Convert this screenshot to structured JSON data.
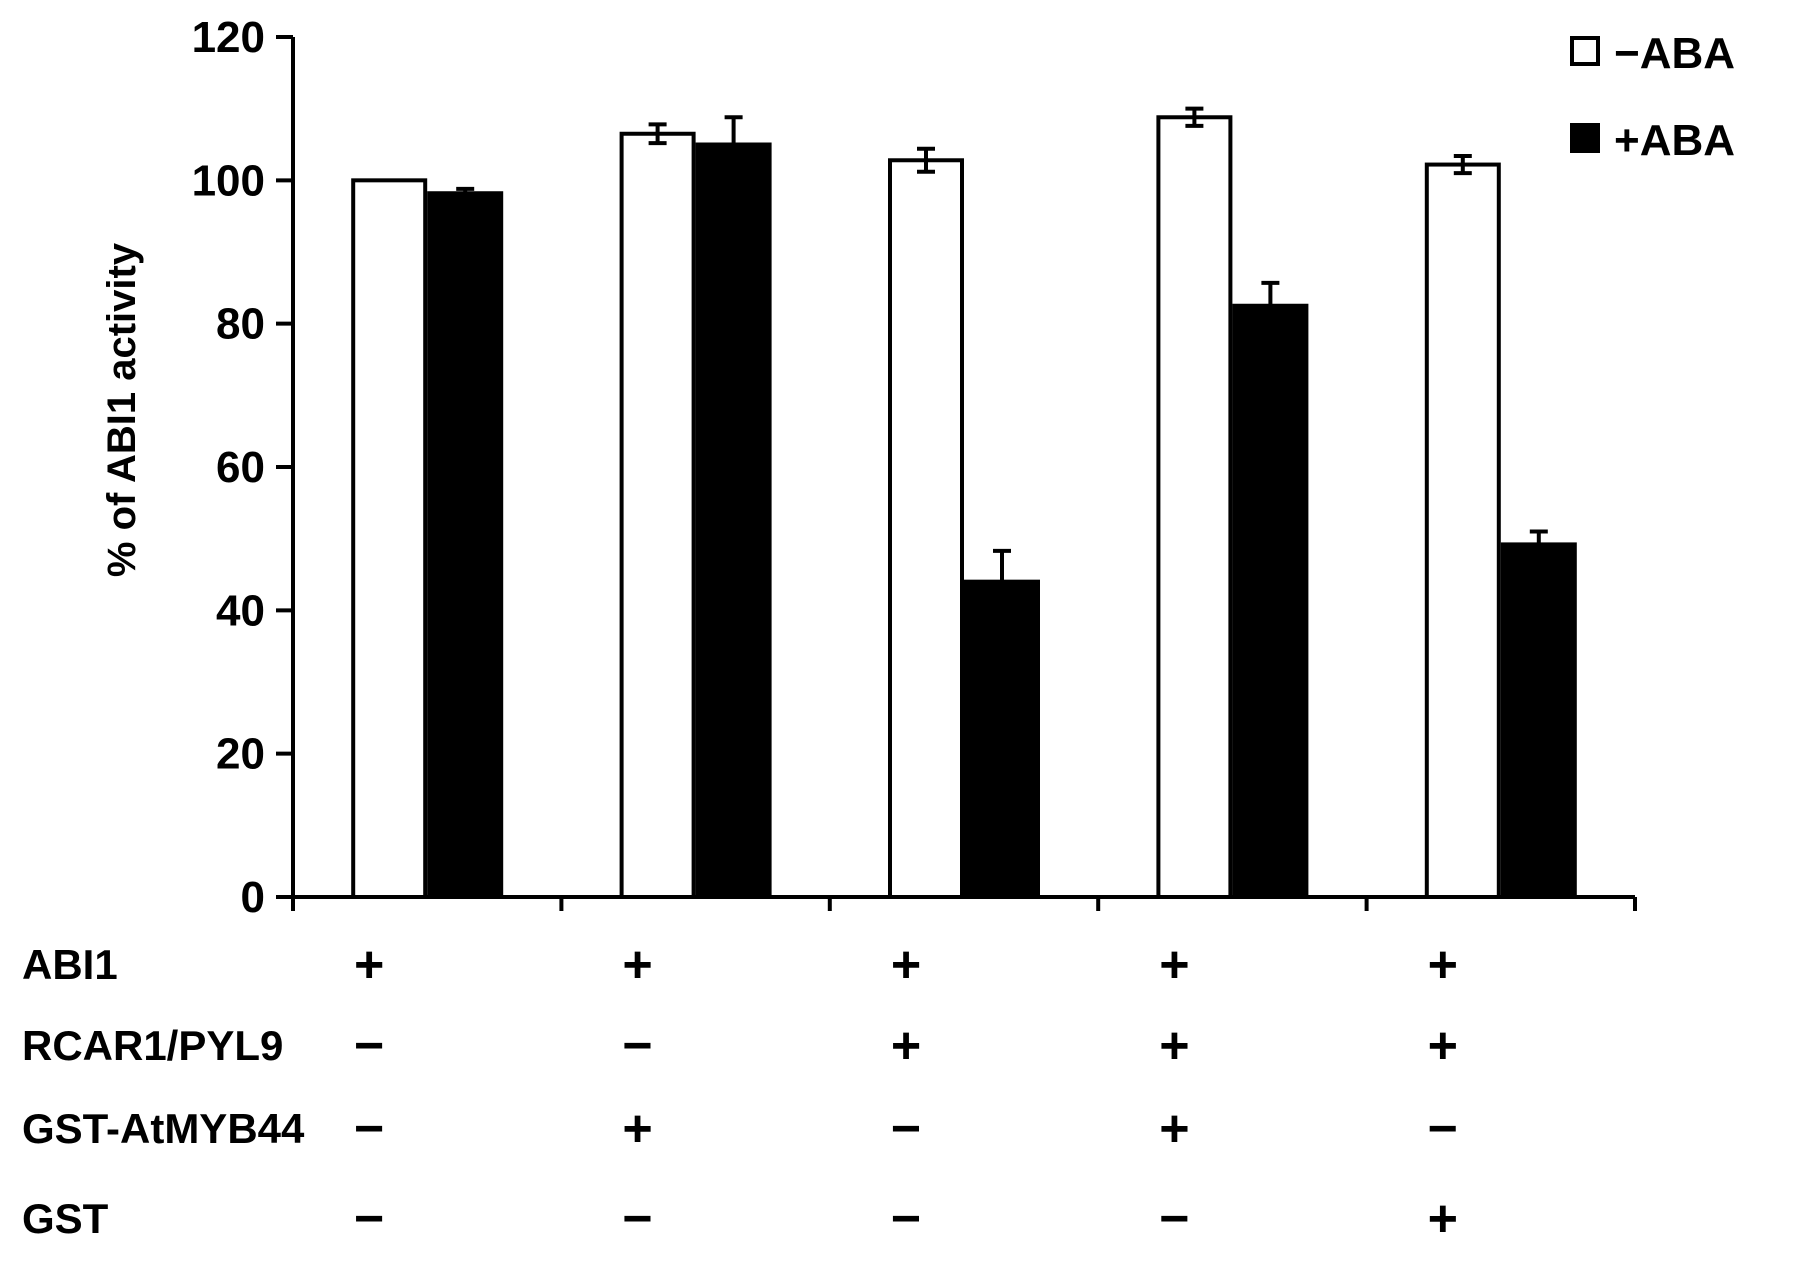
{
  "chart_data": {
    "type": "bar",
    "title": "",
    "xlabel": "",
    "ylabel": "% of ABI1 activity",
    "ylim": [
      0,
      120
    ],
    "yticks": [
      0,
      20,
      40,
      60,
      80,
      100,
      120
    ],
    "grid": false,
    "legend_position": "top-right",
    "groups": 5,
    "series": [
      {
        "name": "−ABA",
        "fill": "#ffffff",
        "stroke": "#000000",
        "values": [
          100,
          106.5,
          102.8,
          108.8,
          102.2
        ],
        "errors": [
          0,
          1.3,
          1.6,
          1.2,
          1.2
        ]
      },
      {
        "name": "+ABA",
        "fill": "#000000",
        "stroke": "#000000",
        "values": [
          98.2,
          105,
          44,
          82.5,
          49.2
        ],
        "errors": [
          0.6,
          3.8,
          4.3,
          3.2,
          1.8
        ]
      }
    ],
    "condition_table": [
      {
        "label": "ABI1",
        "signs": [
          "+",
          "+",
          "+",
          "+",
          "+"
        ]
      },
      {
        "label": "RCAR1/PYL9",
        "signs": [
          "−",
          "−",
          "+",
          "+",
          "+"
        ]
      },
      {
        "label": "GST-AtMYB44",
        "signs": [
          "−",
          "+",
          "−",
          "+",
          "−"
        ]
      },
      {
        "label": "GST",
        "signs": [
          "−",
          "−",
          "−",
          "−",
          "+"
        ]
      }
    ]
  }
}
